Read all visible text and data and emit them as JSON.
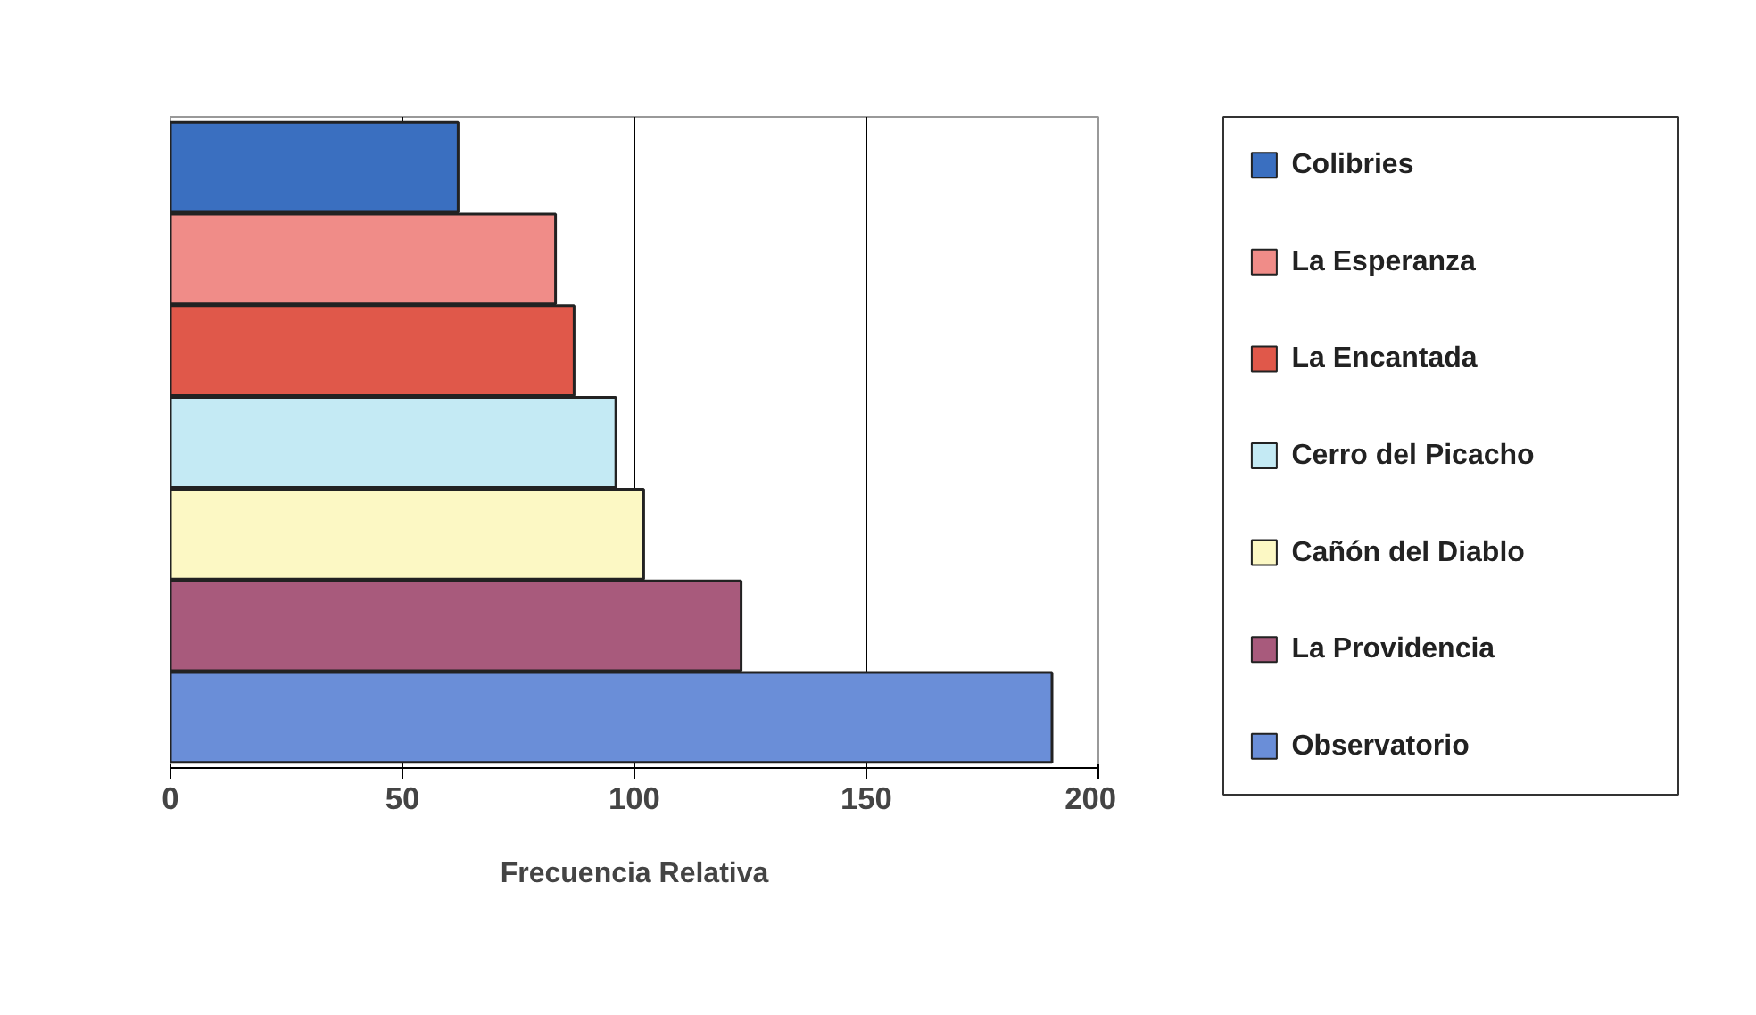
{
  "chart_data": {
    "type": "bar",
    "orientation": "horizontal",
    "xlabel": "Frecuencia Relativa",
    "categories": [
      null,
      null,
      null,
      null,
      null,
      null,
      null
    ],
    "series": [
      {
        "name": "Colibries",
        "color": "#3a6fc0",
        "values": [
          62,
          null,
          null,
          null,
          null,
          null,
          null
        ]
      },
      {
        "name": "La Esperanza",
        "color": "#f08c88",
        "values": [
          null,
          83,
          null,
          null,
          null,
          null,
          null
        ]
      },
      {
        "name": "La Encantada",
        "color": "#e0584a",
        "values": [
          null,
          null,
          87,
          null,
          null,
          null,
          null
        ]
      },
      {
        "name": "Cerro del Picacho",
        "color": "#c4eaf4",
        "values": [
          null,
          null,
          null,
          96,
          null,
          null,
          null
        ]
      },
      {
        "name": "Cañón del Diablo",
        "color": "#fcf8c4",
        "values": [
          null,
          null,
          null,
          null,
          102,
          null,
          null
        ]
      },
      {
        "name": "La Providencia",
        "color": "#a85a7c",
        "values": [
          null,
          null,
          null,
          null,
          null,
          123,
          null
        ]
      },
      {
        "name": "Observatorio",
        "color": "#6a8ed8",
        "values": [
          null,
          null,
          null,
          null,
          null,
          null,
          190
        ]
      }
    ],
    "xlim": [
      0,
      200
    ],
    "xticks": [
      0,
      50,
      100,
      150,
      200
    ],
    "grid": "x",
    "legend": "right",
    "tick_labels": "x"
  }
}
